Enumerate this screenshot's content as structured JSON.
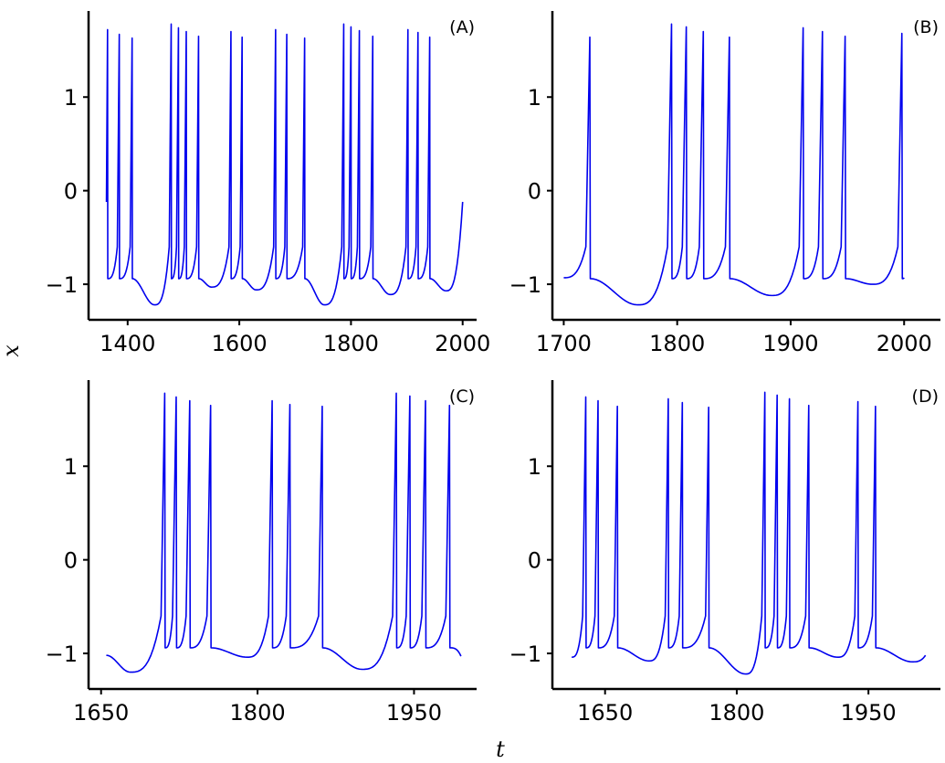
{
  "figure": {
    "shared_xlabel": "t",
    "shared_ylabel": "x",
    "line_color": "#0000ee"
  },
  "chart_data": [
    {
      "type": "line",
      "panel_label": "(A)",
      "xlim": [
        1330,
        2025
      ],
      "ylim": [
        -1.38,
        1.92
      ],
      "xticks": [
        1400,
        1600,
        1800,
        2000
      ],
      "xtick_labels": [
        "1400",
        "1600",
        "1800",
        "2000"
      ],
      "yticks": [
        -1,
        0,
        1
      ],
      "ytick_labels": [
        "−1",
        "0",
        "1"
      ],
      "start": [
        1362,
        -0.12
      ],
      "spikes": [
        {
          "t": 1364,
          "peak": 1.72
        },
        {
          "t": 1385,
          "peak": 1.67
        },
        {
          "t": 1408,
          "peak": 1.63
        },
        {
          "t": 1478,
          "peak": 1.78
        },
        {
          "t": 1491,
          "peak": 1.74
        },
        {
          "t": 1505,
          "peak": 1.7
        },
        {
          "t": 1527,
          "peak": 1.65
        },
        {
          "t": 1585,
          "peak": 1.7
        },
        {
          "t": 1605,
          "peak": 1.64
        },
        {
          "t": 1665,
          "peak": 1.72
        },
        {
          "t": 1685,
          "peak": 1.67
        },
        {
          "t": 1717,
          "peak": 1.63
        },
        {
          "t": 1787,
          "peak": 1.78
        },
        {
          "t": 1800,
          "peak": 1.75
        },
        {
          "t": 1815,
          "peak": 1.71
        },
        {
          "t": 1839,
          "peak": 1.65
        },
        {
          "t": 1902,
          "peak": 1.72
        },
        {
          "t": 1920,
          "peak": 1.69
        },
        {
          "t": 1941,
          "peak": 1.64
        }
      ],
      "minima": [
        {
          "t": 1448,
          "x": -1.22
        },
        {
          "t": 1550,
          "x": -1.03
        },
        {
          "t": 1630,
          "x": -1.06
        },
        {
          "t": 1752,
          "x": -1.22
        },
        {
          "t": 1870,
          "x": -1.11
        },
        {
          "t": 1970,
          "x": -1.07
        }
      ],
      "end": [
        2000,
        -0.12
      ]
    },
    {
      "type": "line",
      "panel_label": "(B)",
      "xlim": [
        1690,
        2032
      ],
      "ylim": [
        -1.38,
        1.92
      ],
      "xticks": [
        1700,
        1800,
        1900,
        2000
      ],
      "xtick_labels": [
        "1700",
        "1800",
        "1900",
        "2000"
      ],
      "yticks": [
        -1,
        0,
        1
      ],
      "ytick_labels": [
        "−1",
        "0",
        "1"
      ],
      "start": [
        1700,
        -0.93
      ],
      "spikes": [
        {
          "t": 1723,
          "peak": 1.64
        },
        {
          "t": 1795,
          "peak": 1.78
        },
        {
          "t": 1808,
          "peak": 1.75
        },
        {
          "t": 1823,
          "peak": 1.7
        },
        {
          "t": 1846,
          "peak": 1.64
        },
        {
          "t": 1911,
          "peak": 1.74
        },
        {
          "t": 1928,
          "peak": 1.7
        },
        {
          "t": 1948,
          "peak": 1.65
        },
        {
          "t": 1998,
          "peak": 1.68
        }
      ],
      "minima": [
        {
          "t": 1765,
          "x": -1.22
        },
        {
          "t": 1883,
          "x": -1.12
        },
        {
          "t": 1972,
          "x": -1.0
        }
      ],
      "end": [
        2000,
        -0.93
      ]
    },
    {
      "type": "line",
      "panel_label": "(C)",
      "xlim": [
        1638,
        2010
      ],
      "ylim": [
        -1.38,
        1.92
      ],
      "xticks": [
        1650,
        1800,
        1950
      ],
      "xtick_labels": [
        "1650",
        "1800",
        "1950"
      ],
      "yticks": [
        -1,
        0,
        1
      ],
      "ytick_labels": [
        "−1",
        "0",
        "1"
      ],
      "start": [
        1655,
        -1.02
      ],
      "spikes": [
        {
          "t": 1711,
          "peak": 1.78
        },
        {
          "t": 1722,
          "peak": 1.74
        },
        {
          "t": 1735,
          "peak": 1.7
        },
        {
          "t": 1755,
          "peak": 1.65
        },
        {
          "t": 1814,
          "peak": 1.7
        },
        {
          "t": 1831,
          "peak": 1.66
        },
        {
          "t": 1862,
          "peak": 1.64
        },
        {
          "t": 1933,
          "peak": 1.78
        },
        {
          "t": 1946,
          "peak": 1.75
        },
        {
          "t": 1961,
          "peak": 1.7
        },
        {
          "t": 1984,
          "peak": 1.65
        }
      ],
      "minima": [
        {
          "t": 1678,
          "x": -1.2
        },
        {
          "t": 1790,
          "x": -1.04
        },
        {
          "t": 1900,
          "x": -1.17
        }
      ],
      "end": [
        1995,
        -1.03
      ]
    },
    {
      "type": "line",
      "panel_label": "(D)",
      "xlim": [
        1590,
        2032
      ],
      "ylim": [
        -1.38,
        1.92
      ],
      "xticks": [
        1650,
        1800,
        1950
      ],
      "xtick_labels": [
        "1650",
        "1800",
        "1950"
      ],
      "yticks": [
        -1,
        0,
        1
      ],
      "ytick_labels": [
        "−1",
        "0",
        "1"
      ],
      "start": [
        1612,
        -1.04
      ],
      "spikes": [
        {
          "t": 1628,
          "peak": 1.74
        },
        {
          "t": 1642,
          "peak": 1.7
        },
        {
          "t": 1664,
          "peak": 1.64
        },
        {
          "t": 1722,
          "peak": 1.72
        },
        {
          "t": 1738,
          "peak": 1.68
        },
        {
          "t": 1768,
          "peak": 1.63
        },
        {
          "t": 1832,
          "peak": 1.79
        },
        {
          "t": 1846,
          "peak": 1.76
        },
        {
          "t": 1860,
          "peak": 1.72
        },
        {
          "t": 1882,
          "peak": 1.65
        },
        {
          "t": 1938,
          "peak": 1.69
        },
        {
          "t": 1958,
          "peak": 1.64
        }
      ],
      "minima": [
        {
          "t": 1700,
          "x": -1.08
        },
        {
          "t": 1810,
          "x": -1.22
        },
        {
          "t": 1915,
          "x": -1.04
        },
        {
          "t": 2000,
          "x": -1.09
        }
      ],
      "end": [
        2015,
        -1.02
      ]
    }
  ]
}
